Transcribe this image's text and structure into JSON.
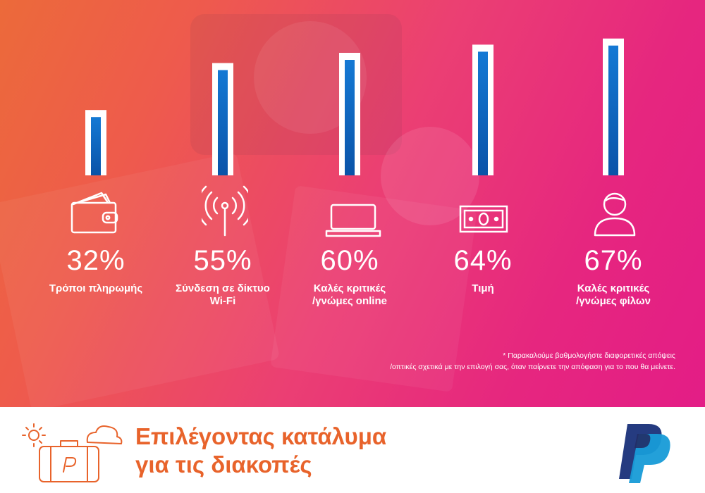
{
  "chart_data": {
    "type": "bar",
    "categories": [
      "Τρόποι πληρωμής",
      "Σύνδεση σε δίκτυο Wi-Fi",
      "Καλές κριτικές /γνώμες online",
      "Τιμή",
      "Καλές κριτικές /γνώμες φίλων"
    ],
    "category_lines": [
      [
        "Τρόποι πληρωμής"
      ],
      [
        "Σύνδεση σε δίκτυο",
        "Wi-Fi"
      ],
      [
        "Καλές κριτικές",
        "/γνώμες online"
      ],
      [
        "Τιμή"
      ],
      [
        "Καλές κριτικές",
        "/γνώμες φίλων"
      ]
    ],
    "values": [
      32,
      55,
      60,
      64,
      67
    ],
    "value_labels": [
      "32%",
      "55%",
      "60%",
      "64%",
      "67%"
    ],
    "icons": [
      "wallet-icon",
      "wifi-icon",
      "laptop-icon",
      "banknote-icon",
      "person-icon"
    ],
    "unit": "%",
    "grid": false,
    "colors": {
      "bar_frame": "#ffffff",
      "bar_fill_top": "#1479d4",
      "bar_fill_bottom": "#0a53a8"
    }
  },
  "footnote": {
    "line1": "* Παρακαλούμε βαθμολογήστε διαφορετικές απόψεις",
    "line2": "/οπτικές σχετικά με την επιλογή σας, όταν παίρνετε την απόφαση για το που θα μείνετε."
  },
  "footer": {
    "title_line1": "Επιλέγοντας κατάλυμα",
    "title_line2": "για τις διακοπές",
    "illustration_icon": "suitcase-sun-cloud-icon",
    "logo_icon": "paypal-logo-icon",
    "colors": {
      "title": "#e8632b",
      "paypal_dark": "#253b80",
      "paypal_light": "#179bd7"
    }
  }
}
